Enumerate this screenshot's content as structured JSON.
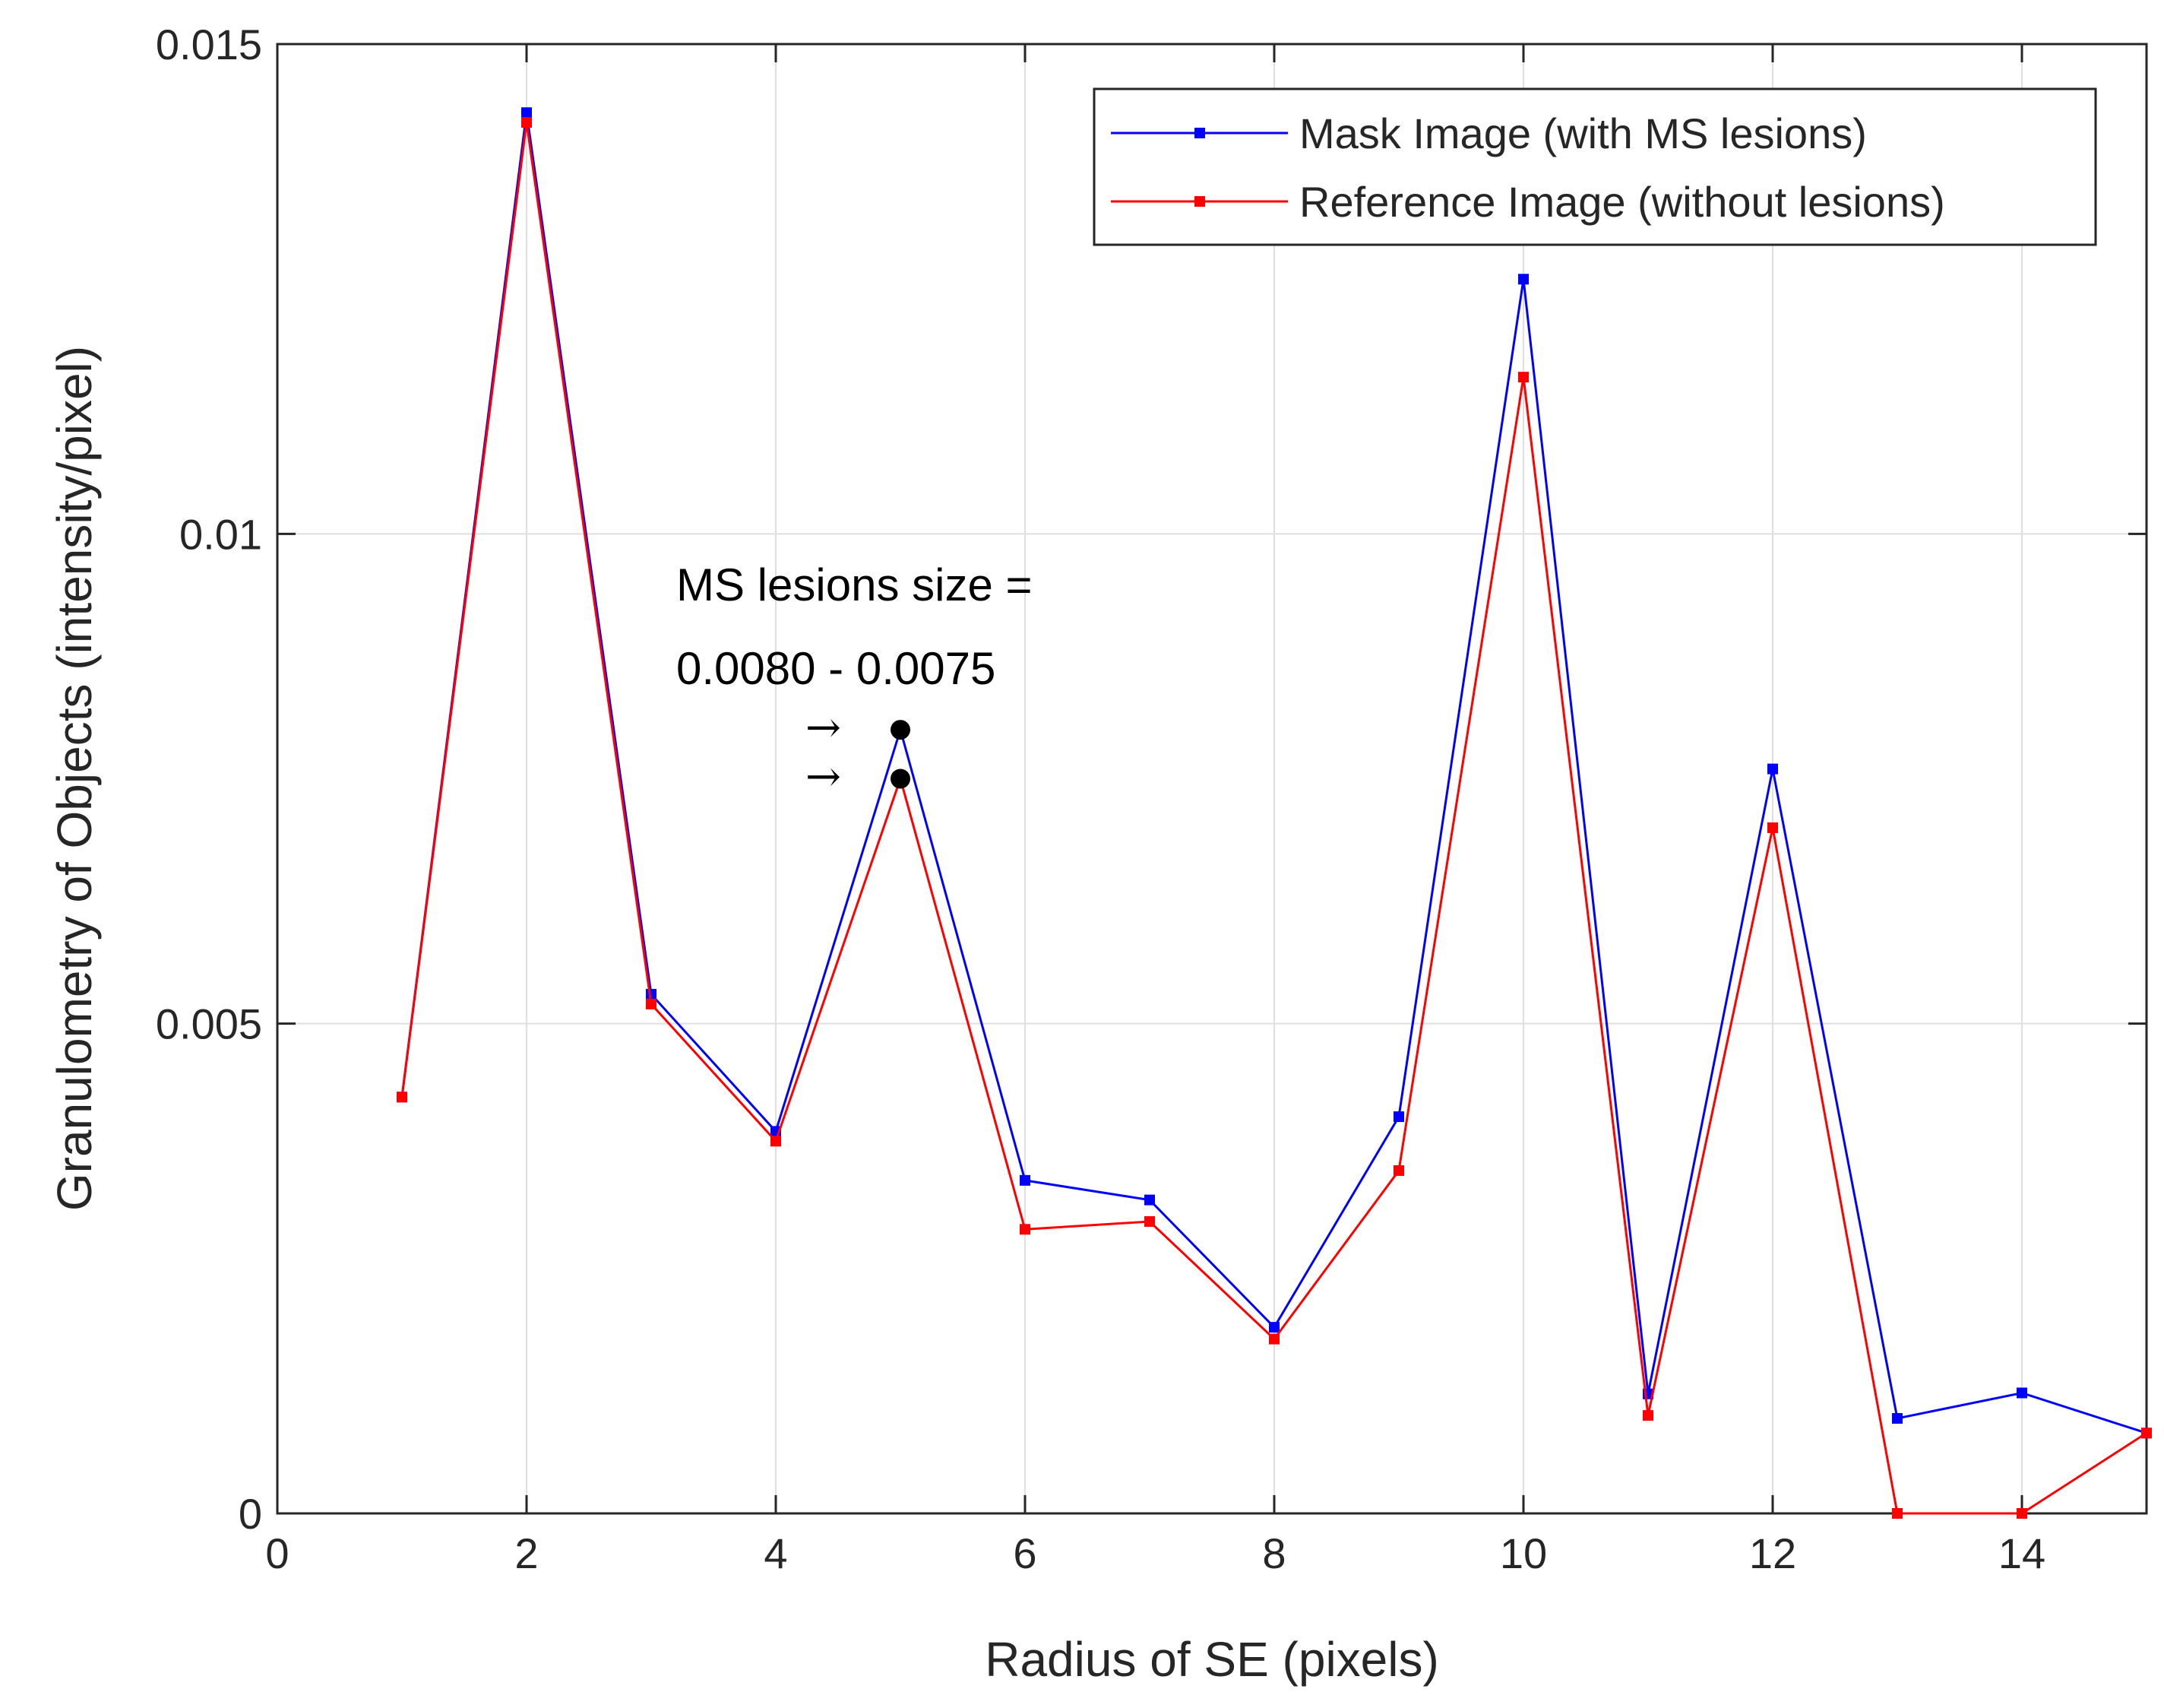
{
  "chart_data": {
    "type": "line",
    "xlabel": "Radius of SE (pixels)",
    "ylabel": "Granulometry of Objects (intensity/pixel)",
    "xlim": [
      0,
      15
    ],
    "ylim": [
      0,
      0.015
    ],
    "x_ticks": [
      0,
      2,
      4,
      6,
      8,
      10,
      12,
      14
    ],
    "x_tick_labels": [
      "0",
      "2",
      "4",
      "6",
      "8",
      "10",
      "12",
      "14"
    ],
    "y_ticks": [
      0,
      0.005,
      0.01,
      0.015
    ],
    "y_tick_labels": [
      "0",
      "0.005",
      "0.01",
      "0.015"
    ],
    "grid": true,
    "legend_position": "top-right",
    "series": [
      {
        "name": "Mask Image (with MS lesions)",
        "color": "#0000ff",
        "x": [
          1,
          2,
          3,
          4,
          5,
          6,
          7,
          8,
          9,
          10,
          11,
          12,
          13,
          14,
          15
        ],
        "y": [
          0.00425,
          0.0143,
          0.0053,
          0.0039,
          0.008,
          0.0034,
          0.0032,
          0.0019,
          0.00405,
          0.0126,
          0.00122,
          0.0076,
          0.00097,
          0.00123,
          0.00082
        ]
      },
      {
        "name": "Reference Image (without lesions)",
        "color": "#ff0000",
        "x": [
          1,
          2,
          3,
          4,
          5,
          6,
          7,
          8,
          9,
          10,
          11,
          12,
          13,
          14,
          15
        ],
        "y": [
          0.00425,
          0.0142,
          0.0052,
          0.0038,
          0.0075,
          0.0029,
          0.00298,
          0.00178,
          0.0035,
          0.0116,
          0.001,
          0.007,
          0.0,
          0.0,
          0.00082
        ]
      }
    ],
    "annotations": {
      "text_line1": "MS lesions size =",
      "text_line2": "0.0080 - 0.0075",
      "arrow_glyph": "→",
      "points": [
        {
          "x": 5,
          "y": 0.008
        },
        {
          "x": 5,
          "y": 0.0075
        }
      ]
    }
  }
}
